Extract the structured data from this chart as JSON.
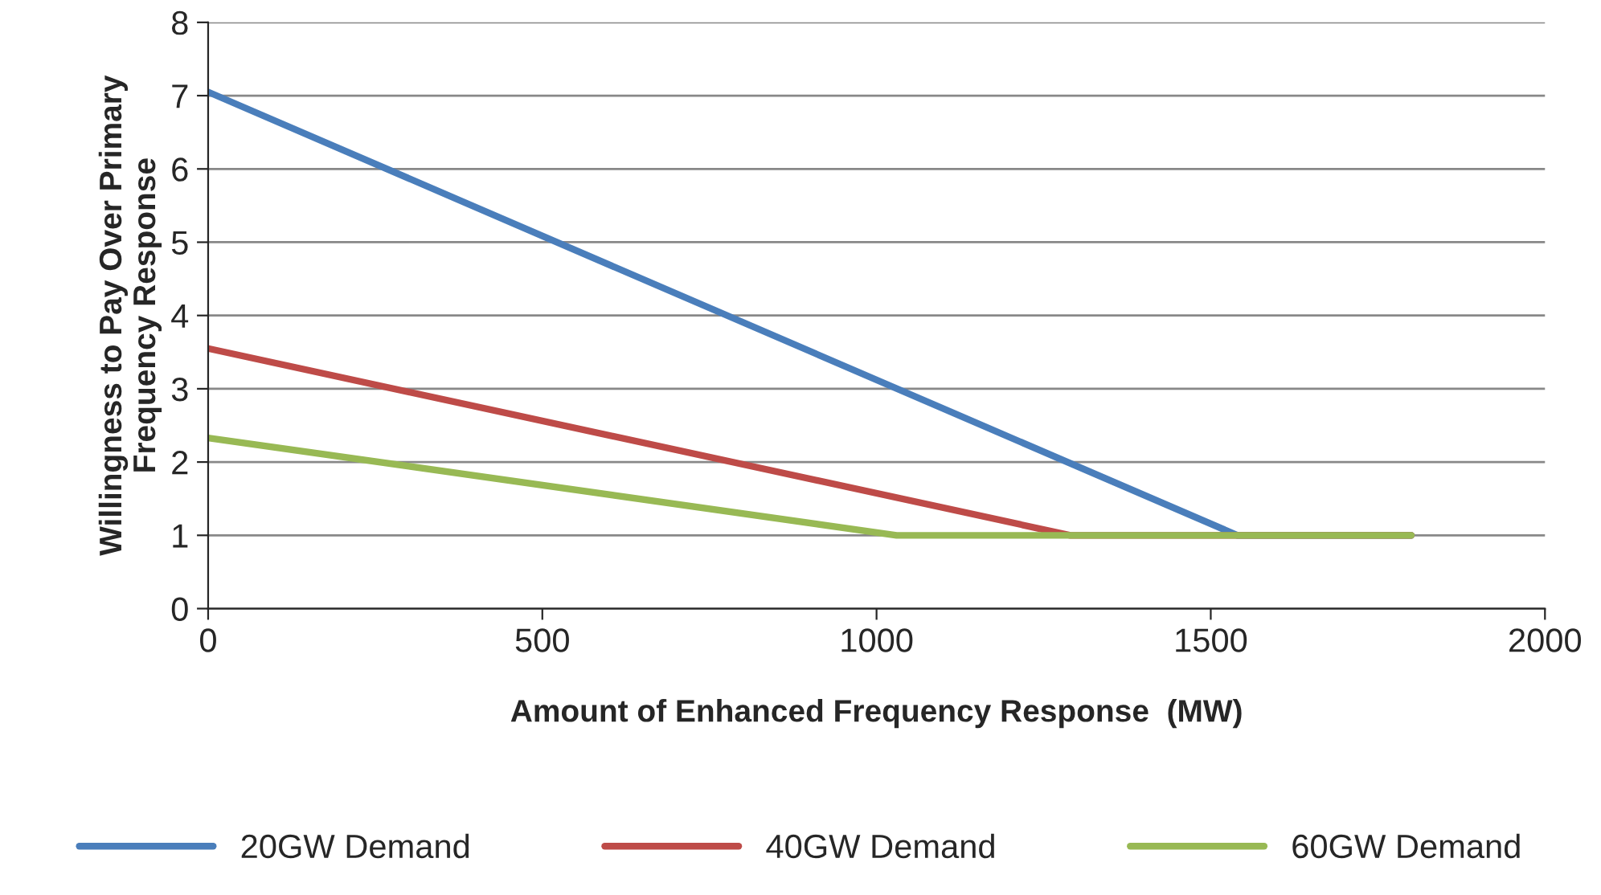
{
  "chart_data": {
    "type": "line",
    "xlabel": "Amount of Enhanced Frequency Response  (MW)",
    "ylabel": "Willingness to Pay Over Primary\nFrequency Response",
    "xlim": [
      0,
      2000
    ],
    "xticks": [
      0,
      500,
      1000,
      1500,
      2000
    ],
    "ylim": [
      0,
      8
    ],
    "yticks": [
      0,
      1,
      2,
      3,
      4,
      5,
      6,
      7,
      8
    ],
    "grid": "y",
    "legend": "bottom",
    "marker": "none",
    "line_style": "solid",
    "series": [
      {
        "name": "20GW Demand",
        "color": "#4a7ebb",
        "x": [
          0,
          1540,
          1800
        ],
        "values": [
          7.05,
          1,
          1
        ]
      },
      {
        "name": "40GW Demand",
        "color": "#be4b48",
        "x": [
          0,
          1290,
          1800
        ],
        "values": [
          3.55,
          1,
          1
        ]
      },
      {
        "name": "60GW Demand",
        "color": "#98b954",
        "x": [
          0,
          1030,
          1800
        ],
        "values": [
          2.33,
          1,
          1
        ]
      }
    ]
  }
}
